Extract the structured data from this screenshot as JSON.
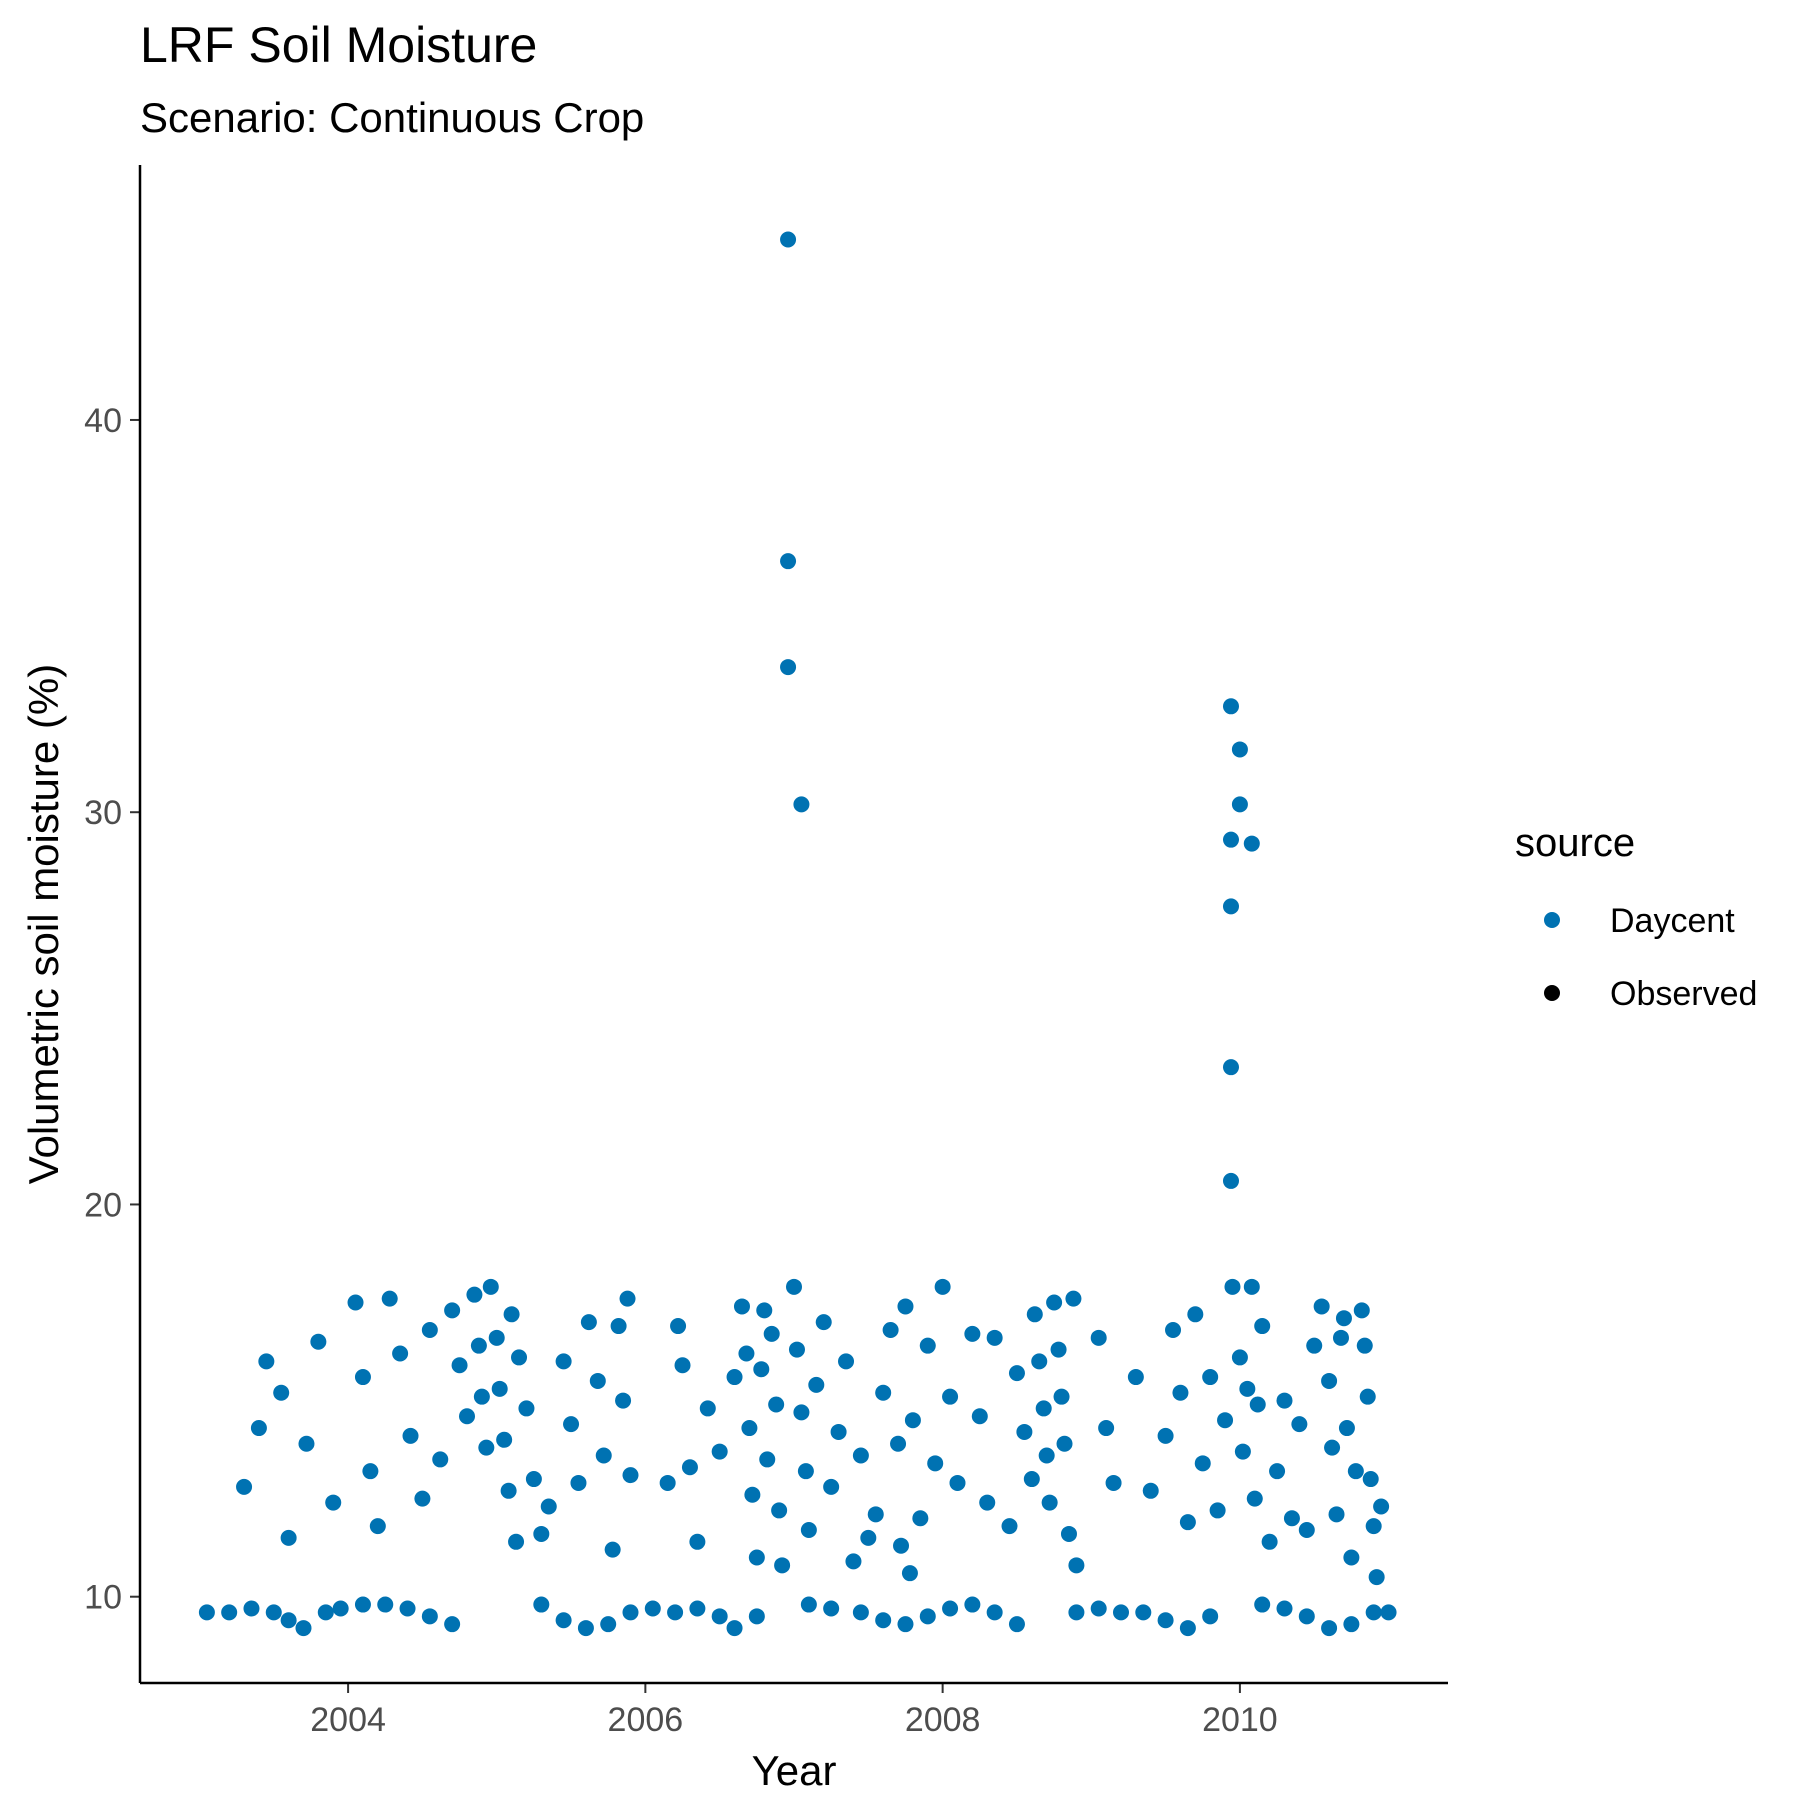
{
  "chart_data": {
    "type": "scatter",
    "title": "LRF Soil Moisture",
    "subtitle": "Scenario: Continuous Crop",
    "xlabel": "Year",
    "ylabel": "Volumetric soil moisture (%)",
    "xlim": [
      2002.6,
      2011.4
    ],
    "ylim": [
      7.8,
      46.5
    ],
    "x_ticks": [
      2004,
      2006,
      2008,
      2010
    ],
    "x_tick_labels": [
      "2004",
      "2006",
      "2008",
      "2010"
    ],
    "y_ticks": [
      10,
      20,
      30,
      40
    ],
    "y_tick_labels": [
      "10",
      "20",
      "30",
      "40"
    ],
    "grid": false,
    "legend": {
      "title": "source",
      "position": "right",
      "entries": [
        {
          "label": "Daycent",
          "color": "#0072B2"
        },
        {
          "label": "Observed",
          "color": "#000000"
        }
      ]
    },
    "series": [
      {
        "name": "Daycent",
        "color": "#0072B2",
        "points": [
          [
            2006.96,
            44.6
          ],
          [
            2006.96,
            36.4
          ],
          [
            2006.96,
            33.7
          ],
          [
            2007.05,
            30.2
          ],
          [
            2009.94,
            32.7
          ],
          [
            2010.0,
            31.6
          ],
          [
            2010.0,
            30.2
          ],
          [
            2010.08,
            29.2
          ],
          [
            2009.94,
            29.3
          ],
          [
            2009.94,
            27.6
          ],
          [
            2009.94,
            23.5
          ],
          [
            2009.94,
            20.6
          ],
          [
            2003.05,
            9.6
          ],
          [
            2003.2,
            9.6
          ],
          [
            2003.35,
            9.7
          ],
          [
            2003.5,
            9.6
          ],
          [
            2003.6,
            9.4
          ],
          [
            2003.7,
            9.2
          ],
          [
            2003.85,
            9.6
          ],
          [
            2003.95,
            9.7
          ],
          [
            2004.1,
            9.8
          ],
          [
            2004.25,
            9.8
          ],
          [
            2004.4,
            9.7
          ],
          [
            2004.55,
            9.5
          ],
          [
            2004.7,
            9.3
          ],
          [
            2005.3,
            9.8
          ],
          [
            2005.45,
            9.4
          ],
          [
            2005.6,
            9.2
          ],
          [
            2005.75,
            9.3
          ],
          [
            2005.9,
            9.6
          ],
          [
            2006.05,
            9.7
          ],
          [
            2006.2,
            9.6
          ],
          [
            2006.35,
            9.7
          ],
          [
            2006.5,
            9.5
          ],
          [
            2006.6,
            9.2
          ],
          [
            2006.75,
            9.5
          ],
          [
            2007.1,
            9.8
          ],
          [
            2007.25,
            9.7
          ],
          [
            2007.45,
            9.6
          ],
          [
            2007.6,
            9.4
          ],
          [
            2007.75,
            9.3
          ],
          [
            2007.9,
            9.5
          ],
          [
            2008.05,
            9.7
          ],
          [
            2008.2,
            9.8
          ],
          [
            2008.35,
            9.6
          ],
          [
            2008.5,
            9.3
          ],
          [
            2008.9,
            9.6
          ],
          [
            2009.05,
            9.7
          ],
          [
            2009.2,
            9.6
          ],
          [
            2009.35,
            9.6
          ],
          [
            2009.5,
            9.4
          ],
          [
            2009.65,
            9.2
          ],
          [
            2009.8,
            9.5
          ],
          [
            2010.15,
            9.8
          ],
          [
            2010.3,
            9.7
          ],
          [
            2010.45,
            9.5
          ],
          [
            2010.6,
            9.2
          ],
          [
            2010.75,
            9.3
          ],
          [
            2010.9,
            9.6
          ],
          [
            2011.0,
            9.6
          ],
          [
            2003.3,
            12.8
          ],
          [
            2003.4,
            14.3
          ],
          [
            2003.45,
            16.0
          ],
          [
            2003.55,
            15.2
          ],
          [
            2003.6,
            11.5
          ],
          [
            2003.72,
            13.9
          ],
          [
            2003.8,
            16.5
          ],
          [
            2003.9,
            12.4
          ],
          [
            2004.05,
            17.5
          ],
          [
            2004.1,
            15.6
          ],
          [
            2004.15,
            13.2
          ],
          [
            2004.2,
            11.8
          ],
          [
            2004.28,
            17.6
          ],
          [
            2004.35,
            16.2
          ],
          [
            2004.42,
            14.1
          ],
          [
            2004.5,
            12.5
          ],
          [
            2004.55,
            16.8
          ],
          [
            2004.62,
            13.5
          ],
          [
            2004.7,
            17.3
          ],
          [
            2004.75,
            15.9
          ],
          [
            2004.8,
            14.6
          ],
          [
            2004.85,
            17.7
          ],
          [
            2004.88,
            16.4
          ],
          [
            2004.9,
            15.1
          ],
          [
            2004.93,
            13.8
          ],
          [
            2004.96,
            17.9
          ],
          [
            2005.0,
            16.6
          ],
          [
            2005.02,
            15.3
          ],
          [
            2005.05,
            14.0
          ],
          [
            2005.08,
            12.7
          ],
          [
            2005.1,
            17.2
          ],
          [
            2005.13,
            11.4
          ],
          [
            2005.15,
            16.1
          ],
          [
            2005.2,
            14.8
          ],
          [
            2005.25,
            13.0
          ],
          [
            2005.3,
            11.6
          ],
          [
            2005.35,
            12.3
          ],
          [
            2005.45,
            16.0
          ],
          [
            2005.5,
            14.4
          ],
          [
            2005.55,
            12.9
          ],
          [
            2005.62,
            17.0
          ],
          [
            2005.68,
            15.5
          ],
          [
            2005.72,
            13.6
          ],
          [
            2005.78,
            11.2
          ],
          [
            2005.82,
            16.9
          ],
          [
            2005.85,
            15.0
          ],
          [
            2005.88,
            17.6
          ],
          [
            2005.9,
            13.1
          ],
          [
            2006.15,
            12.9
          ],
          [
            2006.22,
            16.9
          ],
          [
            2006.25,
            15.9
          ],
          [
            2006.3,
            13.3
          ],
          [
            2006.35,
            11.4
          ],
          [
            2006.42,
            14.8
          ],
          [
            2006.5,
            13.7
          ],
          [
            2006.6,
            15.6
          ],
          [
            2006.65,
            17.4
          ],
          [
            2006.68,
            16.2
          ],
          [
            2006.7,
            14.3
          ],
          [
            2006.72,
            12.6
          ],
          [
            2006.75,
            11.0
          ],
          [
            2006.78,
            15.8
          ],
          [
            2006.8,
            17.3
          ],
          [
            2006.82,
            13.5
          ],
          [
            2006.85,
            16.7
          ],
          [
            2006.88,
            14.9
          ],
          [
            2006.9,
            12.2
          ],
          [
            2006.92,
            10.8
          ],
          [
            2007.0,
            17.9
          ],
          [
            2007.02,
            16.3
          ],
          [
            2007.05,
            14.7
          ],
          [
            2007.08,
            13.2
          ],
          [
            2007.1,
            11.7
          ],
          [
            2007.15,
            15.4
          ],
          [
            2007.2,
            17.0
          ],
          [
            2007.25,
            12.8
          ],
          [
            2007.3,
            14.2
          ],
          [
            2007.35,
            16.0
          ],
          [
            2007.4,
            10.9
          ],
          [
            2007.45,
            13.6
          ],
          [
            2007.5,
            11.5
          ],
          [
            2007.55,
            12.1
          ],
          [
            2007.6,
            15.2
          ],
          [
            2007.65,
            16.8
          ],
          [
            2007.7,
            13.9
          ],
          [
            2007.72,
            11.3
          ],
          [
            2007.75,
            17.4
          ],
          [
            2007.78,
            10.6
          ],
          [
            2007.8,
            14.5
          ],
          [
            2007.85,
            12.0
          ],
          [
            2007.9,
            16.4
          ],
          [
            2007.95,
            13.4
          ],
          [
            2008.0,
            17.9
          ],
          [
            2008.05,
            15.1
          ],
          [
            2008.1,
            12.9
          ],
          [
            2008.2,
            16.7
          ],
          [
            2008.25,
            14.6
          ],
          [
            2008.3,
            12.4
          ],
          [
            2008.35,
            16.6
          ],
          [
            2008.45,
            11.8
          ],
          [
            2008.5,
            15.7
          ],
          [
            2008.55,
            14.2
          ],
          [
            2008.6,
            13.0
          ],
          [
            2008.62,
            17.2
          ],
          [
            2008.65,
            16.0
          ],
          [
            2008.68,
            14.8
          ],
          [
            2008.7,
            13.6
          ],
          [
            2008.72,
            12.4
          ],
          [
            2008.75,
            17.5
          ],
          [
            2008.78,
            16.3
          ],
          [
            2008.8,
            15.1
          ],
          [
            2008.82,
            13.9
          ],
          [
            2008.85,
            11.6
          ],
          [
            2008.88,
            17.6
          ],
          [
            2008.9,
            10.8
          ],
          [
            2009.05,
            16.6
          ],
          [
            2009.1,
            14.3
          ],
          [
            2009.15,
            12.9
          ],
          [
            2009.3,
            15.6
          ],
          [
            2009.4,
            12.7
          ],
          [
            2009.5,
            14.1
          ],
          [
            2009.55,
            16.8
          ],
          [
            2009.6,
            15.2
          ],
          [
            2009.65,
            11.9
          ],
          [
            2009.7,
            17.2
          ],
          [
            2009.75,
            13.4
          ],
          [
            2009.8,
            15.6
          ],
          [
            2009.85,
            12.2
          ],
          [
            2009.9,
            14.5
          ],
          [
            2009.95,
            17.9
          ],
          [
            2010.0,
            16.1
          ],
          [
            2010.02,
            13.7
          ],
          [
            2010.05,
            15.3
          ],
          [
            2010.08,
            17.9
          ],
          [
            2010.1,
            12.5
          ],
          [
            2010.12,
            14.9
          ],
          [
            2010.15,
            16.9
          ],
          [
            2010.2,
            11.4
          ],
          [
            2010.25,
            13.2
          ],
          [
            2010.3,
            15.0
          ],
          [
            2010.35,
            12.0
          ],
          [
            2010.4,
            14.4
          ],
          [
            2010.45,
            11.7
          ],
          [
            2010.5,
            16.4
          ],
          [
            2010.55,
            17.4
          ],
          [
            2010.6,
            15.5
          ],
          [
            2010.62,
            13.8
          ],
          [
            2010.65,
            12.1
          ],
          [
            2010.68,
            16.6
          ],
          [
            2010.7,
            17.1
          ],
          [
            2010.72,
            14.3
          ],
          [
            2010.75,
            11.0
          ],
          [
            2010.78,
            13.2
          ],
          [
            2010.82,
            17.3
          ],
          [
            2010.84,
            16.4
          ],
          [
            2010.86,
            15.1
          ],
          [
            2010.88,
            13.0
          ],
          [
            2010.9,
            11.8
          ],
          [
            2010.92,
            10.5
          ],
          [
            2010.95,
            12.3
          ]
        ]
      }
    ]
  }
}
